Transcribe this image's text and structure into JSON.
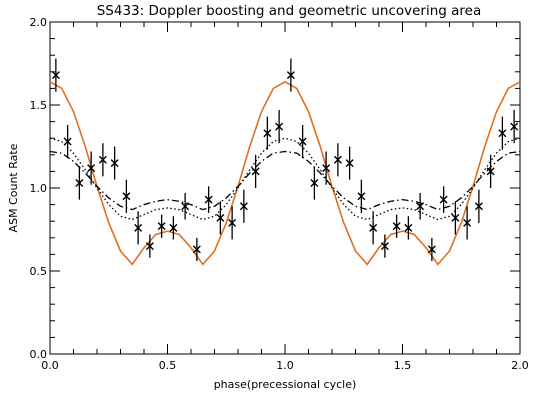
{
  "chart_data": {
    "type": "scatter",
    "title": "SS433: Doppler boosting and geometric uncovering area",
    "xlabel": "phase(precessional cycle)",
    "ylabel": "ASM Count Rate",
    "xlim": [
      0.0,
      2.0
    ],
    "ylim": [
      0.0,
      2.0
    ],
    "x_ticks": [
      "0.0",
      "0.5",
      "1.0",
      "1.5",
      "2.0"
    ],
    "y_ticks": [
      "0.0",
      "0.5",
      "1.0",
      "1.5",
      "2.0"
    ],
    "grid": false,
    "legend": "none",
    "series": [
      {
        "kind": "points-with-errorbars",
        "marker": "x",
        "color": "#000000",
        "x": [
          0.025,
          0.075,
          0.125,
          0.175,
          0.225,
          0.275,
          0.325,
          0.375,
          0.425,
          0.475,
          0.525,
          0.575,
          0.625,
          0.675,
          0.725,
          0.775,
          0.825,
          0.875,
          0.925,
          0.975,
          1.025,
          1.075,
          1.125,
          1.175,
          1.225,
          1.275,
          1.325,
          1.375,
          1.425,
          1.475,
          1.525,
          1.575,
          1.625,
          1.675,
          1.725,
          1.775,
          1.825,
          1.875,
          1.925,
          1.975
        ],
        "y": [
          1.68,
          1.28,
          1.03,
          1.12,
          1.17,
          1.15,
          0.95,
          0.76,
          0.65,
          0.77,
          0.76,
          0.89,
          0.63,
          0.93,
          0.82,
          0.79,
          0.89,
          1.1,
          1.33,
          1.37,
          1.68,
          1.28,
          1.03,
          1.12,
          1.17,
          1.15,
          0.95,
          0.76,
          0.65,
          0.77,
          0.76,
          0.89,
          0.63,
          0.93,
          0.82,
          0.79,
          0.89,
          1.1,
          1.33,
          1.37
        ],
        "err": [
          0.1,
          0.1,
          0.1,
          0.1,
          0.1,
          0.1,
          0.1,
          0.1,
          0.07,
          0.07,
          0.07,
          0.08,
          0.07,
          0.08,
          0.1,
          0.1,
          0.1,
          0.1,
          0.1,
          0.1,
          0.1,
          0.1,
          0.1,
          0.1,
          0.1,
          0.1,
          0.1,
          0.1,
          0.07,
          0.07,
          0.07,
          0.08,
          0.07,
          0.08,
          0.1,
          0.1,
          0.1,
          0.1,
          0.1,
          0.1
        ]
      },
      {
        "kind": "line",
        "style": "solid",
        "color": "#e07020",
        "x": [
          0.0,
          0.05,
          0.1,
          0.15,
          0.2,
          0.25,
          0.3,
          0.35,
          0.4,
          0.45,
          0.5,
          0.55,
          0.6,
          0.65,
          0.7,
          0.75,
          0.8,
          0.85,
          0.9,
          0.95,
          1.0,
          1.05,
          1.1,
          1.15,
          1.2,
          1.25,
          1.3,
          1.35,
          1.4,
          1.45,
          1.5,
          1.55,
          1.6,
          1.65,
          1.7,
          1.75,
          1.8,
          1.85,
          1.9,
          1.95,
          2.0
        ],
        "y": [
          1.64,
          1.6,
          1.46,
          1.25,
          1.01,
          0.79,
          0.62,
          0.54,
          0.64,
          0.72,
          0.74,
          0.72,
          0.64,
          0.54,
          0.62,
          0.79,
          1.01,
          1.25,
          1.46,
          1.6,
          1.64,
          1.6,
          1.46,
          1.25,
          1.01,
          0.79,
          0.62,
          0.54,
          0.64,
          0.72,
          0.74,
          0.72,
          0.64,
          0.54,
          0.62,
          0.79,
          1.01,
          1.25,
          1.46,
          1.6,
          1.64
        ]
      },
      {
        "kind": "line",
        "style": "dotted",
        "color": "#000000",
        "x": [
          0.0,
          0.05,
          0.1,
          0.15,
          0.2,
          0.25,
          0.3,
          0.35,
          0.4,
          0.45,
          0.5,
          0.55,
          0.6,
          0.65,
          0.7,
          0.75,
          0.8,
          0.85,
          0.9,
          0.95,
          1.0,
          1.05,
          1.1,
          1.15,
          1.2,
          1.25,
          1.3,
          1.35,
          1.4,
          1.45,
          1.5,
          1.55,
          1.6,
          1.65,
          1.7,
          1.75,
          1.8,
          1.85,
          1.9,
          1.95,
          2.0
        ],
        "y": [
          1.3,
          1.28,
          1.21,
          1.11,
          1.0,
          0.9,
          0.83,
          0.81,
          0.84,
          0.87,
          0.88,
          0.87,
          0.84,
          0.81,
          0.83,
          0.9,
          1.0,
          1.11,
          1.21,
          1.28,
          1.3,
          1.28,
          1.21,
          1.11,
          1.0,
          0.9,
          0.83,
          0.81,
          0.84,
          0.87,
          0.88,
          0.87,
          0.84,
          0.81,
          0.83,
          0.9,
          1.0,
          1.11,
          1.21,
          1.28,
          1.3
        ]
      },
      {
        "kind": "line",
        "style": "dash-dot",
        "color": "#000000",
        "x": [
          0.0,
          0.05,
          0.1,
          0.15,
          0.2,
          0.25,
          0.3,
          0.35,
          0.4,
          0.45,
          0.5,
          0.55,
          0.6,
          0.65,
          0.7,
          0.75,
          0.8,
          0.85,
          0.9,
          0.95,
          1.0,
          1.05,
          1.1,
          1.15,
          1.2,
          1.25,
          1.3,
          1.35,
          1.4,
          1.45,
          1.5,
          1.55,
          1.6,
          1.65,
          1.7,
          1.75,
          1.8,
          1.85,
          1.9,
          1.95,
          2.0
        ],
        "y": [
          1.22,
          1.21,
          1.16,
          1.09,
          1.01,
          0.94,
          0.89,
          0.87,
          0.9,
          0.92,
          0.93,
          0.92,
          0.9,
          0.87,
          0.89,
          0.94,
          1.01,
          1.09,
          1.16,
          1.21,
          1.22,
          1.21,
          1.16,
          1.09,
          1.01,
          0.94,
          0.89,
          0.87,
          0.9,
          0.92,
          0.93,
          0.92,
          0.9,
          0.87,
          0.89,
          0.94,
          1.01,
          1.09,
          1.16,
          1.21,
          1.22
        ]
      }
    ]
  }
}
